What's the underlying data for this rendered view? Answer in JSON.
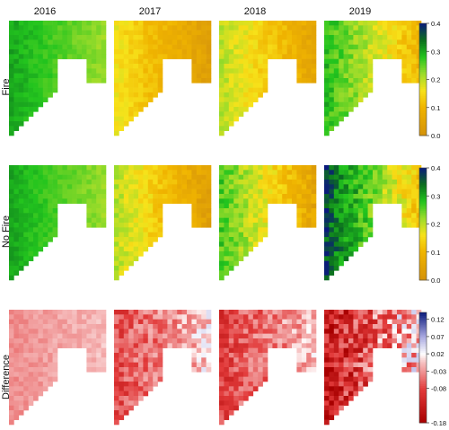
{
  "chart_data": {
    "type": "heatmap",
    "columns": [
      "2016",
      "2017",
      "2018",
      "2019"
    ],
    "rows": [
      {
        "label": "Fire",
        "colorbar_ticks": [
          "0.4",
          "0.3",
          "0.2",
          "0.1",
          "0.0"
        ],
        "range": [
          0.0,
          0.4
        ],
        "scale": "orange-yellow-green-blue"
      },
      {
        "label": "No Fire",
        "colorbar_ticks": [
          "0.4",
          "0.3",
          "0.2",
          "0.1",
          "0.0"
        ],
        "range": [
          0.0,
          0.4
        ],
        "scale": "orange-yellow-green-blue"
      },
      {
        "label": "Difference",
        "colorbar_ticks": [
          "0.12",
          "0.07",
          "0.02",
          "-0.03",
          "-0.08",
          "-0.18"
        ],
        "tick_values": [
          0.12,
          0.07,
          0.02,
          -0.03,
          -0.08,
          -0.18
        ],
        "range": [
          -0.18,
          0.14
        ],
        "scale": "red-white-blue"
      }
    ],
    "map_regimes": {
      "fire": {
        "2016": [
          0.22,
          0.3
        ],
        "2017": [
          0.04,
          0.16
        ],
        "2018": [
          0.06,
          0.2
        ],
        "2019": [
          0.1,
          0.28
        ]
      },
      "nofire": {
        "2016": [
          0.22,
          0.3
        ],
        "2017": [
          0.04,
          0.2
        ],
        "2018": [
          0.06,
          0.26
        ],
        "2019": [
          0.12,
          0.36
        ]
      },
      "diff": {
        "2016": [
          -0.04,
          -0.01
        ],
        "2017": [
          -0.09,
          0.0
        ],
        "2018": [
          -0.1,
          -0.01
        ],
        "2019": [
          -0.16,
          0.0
        ]
      }
    },
    "colors": {
      "low": "#d4920a",
      "yellow": "#f7e21a",
      "green": "#22c41e",
      "dark_green": "#0b6e1e",
      "high": "#0a1a7c",
      "diff_neg": "#a80000",
      "diff_zero": "#ffffff",
      "diff_pos": "#0a1a7c"
    }
  }
}
